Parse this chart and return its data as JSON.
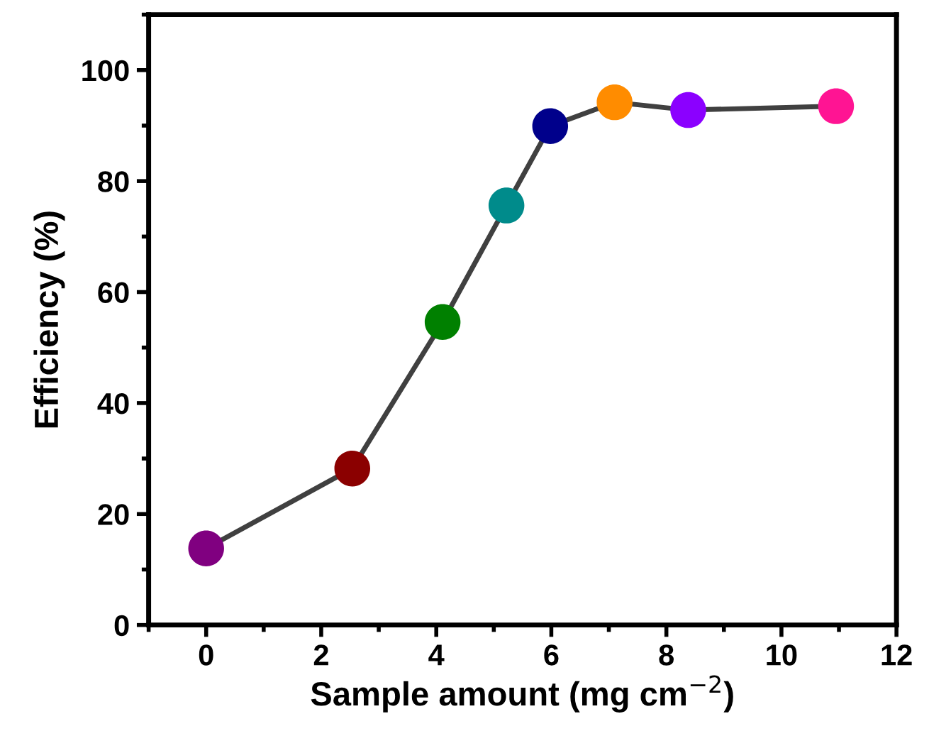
{
  "chart_data": {
    "type": "line",
    "xlabel": "Sample amount (mg cm$^{−2}$)",
    "ylabel": "Efficiency (%)",
    "x": [
      0,
      2.54,
      4.11,
      5.22,
      5.98,
      7.1,
      8.38,
      10.95
    ],
    "series": [
      {
        "color": "#404040",
        "values": [
          13.8,
          28.2,
          54.6,
          75.6,
          89.9,
          94.2,
          92.8,
          93.5
        ],
        "colors": [
          "#800080",
          "#8b0000",
          "#008000",
          "#008b8b",
          "#00008b",
          "#ff8c00",
          "#8b00ff",
          "#ff1493"
        ]
      }
    ],
    "xlim": [
      -1,
      12
    ],
    "ylim": [
      0,
      110
    ],
    "xticks": [
      0,
      2,
      4,
      6,
      8,
      10,
      12
    ],
    "yticks": [
      0,
      20,
      40,
      60,
      80,
      100
    ],
    "marker": "circle",
    "line_style": "solid",
    "grid": false,
    "legend": false
  }
}
